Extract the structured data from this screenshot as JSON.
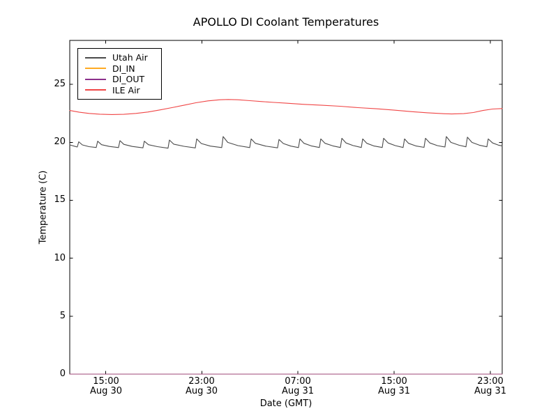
{
  "chart_data": {
    "type": "line",
    "title": "APOLLO DI Coolant Temperatures",
    "xlabel": "Date (GMT)",
    "ylabel": "Temperature (C)",
    "legend_position": "upper left",
    "grid": false,
    "x_axis_note": "hours elapsed, axis spans Aug 30 ~12:00 GMT to Aug 31 ~24:00 GMT",
    "xlim": [
      0,
      36
    ],
    "ylim": [
      0,
      28.8
    ],
    "axes": {
      "xticks": [
        {
          "t": 3,
          "time": "15:00",
          "date": "Aug 30"
        },
        {
          "t": 11,
          "time": "23:00",
          "date": "Aug 30"
        },
        {
          "t": 19,
          "time": "07:00",
          "date": "Aug 31"
        },
        {
          "t": 27,
          "time": "15:00",
          "date": "Aug 31"
        },
        {
          "t": 35,
          "time": "23:00",
          "date": "Aug 31"
        }
      ],
      "yticks": [
        {
          "v": 0,
          "label": "0"
        },
        {
          "v": 5,
          "label": "5"
        },
        {
          "v": 10,
          "label": "10"
        },
        {
          "v": 15,
          "label": "15"
        },
        {
          "v": 20,
          "label": "20"
        },
        {
          "v": 25,
          "label": "25"
        }
      ]
    },
    "series": [
      {
        "name": "Utah Air",
        "color": "#4a4a4a",
        "description": "sawtooth oscillation ~19.5-20.5 C, spike period ~1.8 h",
        "points": [
          [
            0,
            19.78
          ],
          [
            0.45,
            19.65
          ],
          [
            0.63,
            19.6
          ],
          [
            0.75,
            20.05
          ],
          [
            1.05,
            19.78
          ],
          [
            1.6,
            19.63
          ],
          [
            2.2,
            19.56
          ],
          [
            2.32,
            20.1
          ],
          [
            2.65,
            19.8
          ],
          [
            3.3,
            19.65
          ],
          [
            4.06,
            19.55
          ],
          [
            4.18,
            20.15
          ],
          [
            4.5,
            19.83
          ],
          [
            5.2,
            19.65
          ],
          [
            6.09,
            19.53
          ],
          [
            6.21,
            20.1
          ],
          [
            6.55,
            19.8
          ],
          [
            7.3,
            19.63
          ],
          [
            8.18,
            19.5
          ],
          [
            8.3,
            20.2
          ],
          [
            8.65,
            19.85
          ],
          [
            9.5,
            19.66
          ],
          [
            10.45,
            19.52
          ],
          [
            10.57,
            20.3
          ],
          [
            10.95,
            19.9
          ],
          [
            11.7,
            19.68
          ],
          [
            12.65,
            19.55
          ],
          [
            12.77,
            20.5
          ],
          [
            13.15,
            20.0
          ],
          [
            14.0,
            19.72
          ],
          [
            14.98,
            19.55
          ],
          [
            15.1,
            20.3
          ],
          [
            15.45,
            19.92
          ],
          [
            16.3,
            19.68
          ],
          [
            17.3,
            19.53
          ],
          [
            17.42,
            20.25
          ],
          [
            17.78,
            19.9
          ],
          [
            18.4,
            19.68
          ],
          [
            19.04,
            19.55
          ],
          [
            19.16,
            20.3
          ],
          [
            19.5,
            19.92
          ],
          [
            20.1,
            19.7
          ],
          [
            20.78,
            19.56
          ],
          [
            20.9,
            20.3
          ],
          [
            21.25,
            19.92
          ],
          [
            21.9,
            19.7
          ],
          [
            22.53,
            19.56
          ],
          [
            22.65,
            20.35
          ],
          [
            23.0,
            19.95
          ],
          [
            23.6,
            19.72
          ],
          [
            24.27,
            19.56
          ],
          [
            24.39,
            20.3
          ],
          [
            24.73,
            19.92
          ],
          [
            25.3,
            19.7
          ],
          [
            26.01,
            19.56
          ],
          [
            26.13,
            20.35
          ],
          [
            26.5,
            19.95
          ],
          [
            27.1,
            19.72
          ],
          [
            27.75,
            19.56
          ],
          [
            27.87,
            20.3
          ],
          [
            28.2,
            19.92
          ],
          [
            28.8,
            19.7
          ],
          [
            29.49,
            19.57
          ],
          [
            29.61,
            20.35
          ],
          [
            29.98,
            19.95
          ],
          [
            30.6,
            19.72
          ],
          [
            31.23,
            19.6
          ],
          [
            31.35,
            20.5
          ],
          [
            31.73,
            20.0
          ],
          [
            32.4,
            19.76
          ],
          [
            32.98,
            19.62
          ],
          [
            33.1,
            20.45
          ],
          [
            33.48,
            20.0
          ],
          [
            34.1,
            19.76
          ],
          [
            34.72,
            19.62
          ],
          [
            34.84,
            20.3
          ],
          [
            35.2,
            19.95
          ],
          [
            35.7,
            19.76
          ],
          [
            36,
            19.7
          ]
        ]
      },
      {
        "name": "DI_IN",
        "color": "#ffaa22",
        "description": "flat at 0 C, hidden along bottom axis",
        "points": [
          [
            0,
            0
          ],
          [
            36,
            0
          ]
        ]
      },
      {
        "name": "DI_OUT",
        "color": "#8b2f8b",
        "description": "flat at 0 C, hidden along bottom axis",
        "points": [
          [
            0,
            0
          ],
          [
            36,
            0
          ]
        ]
      },
      {
        "name": "ILE Air",
        "color": "#f04545",
        "description": "smooth curve 22.4-23.7 C, peak near Aug 31 01:00",
        "points": [
          [
            0,
            22.75
          ],
          [
            0.8,
            22.6
          ],
          [
            1.6,
            22.5
          ],
          [
            2.5,
            22.43
          ],
          [
            3.5,
            22.4
          ],
          [
            4.5,
            22.42
          ],
          [
            5.5,
            22.5
          ],
          [
            6.5,
            22.62
          ],
          [
            7.5,
            22.8
          ],
          [
            8.5,
            23.0
          ],
          [
            9.5,
            23.2
          ],
          [
            10.5,
            23.42
          ],
          [
            11.5,
            23.58
          ],
          [
            12.5,
            23.68
          ],
          [
            13.2,
            23.7
          ],
          [
            14,
            23.68
          ],
          [
            15,
            23.6
          ],
          [
            16,
            23.52
          ],
          [
            17,
            23.45
          ],
          [
            18,
            23.38
          ],
          [
            19.5,
            23.28
          ],
          [
            21,
            23.2
          ],
          [
            22.5,
            23.12
          ],
          [
            24,
            23.0
          ],
          [
            25.5,
            22.9
          ],
          [
            27,
            22.78
          ],
          [
            28.5,
            22.65
          ],
          [
            29.8,
            22.55
          ],
          [
            31,
            22.48
          ],
          [
            31.8,
            22.45
          ],
          [
            32.8,
            22.48
          ],
          [
            33.6,
            22.58
          ],
          [
            34.4,
            22.75
          ],
          [
            35.2,
            22.88
          ],
          [
            36,
            22.92
          ]
        ]
      }
    ]
  }
}
